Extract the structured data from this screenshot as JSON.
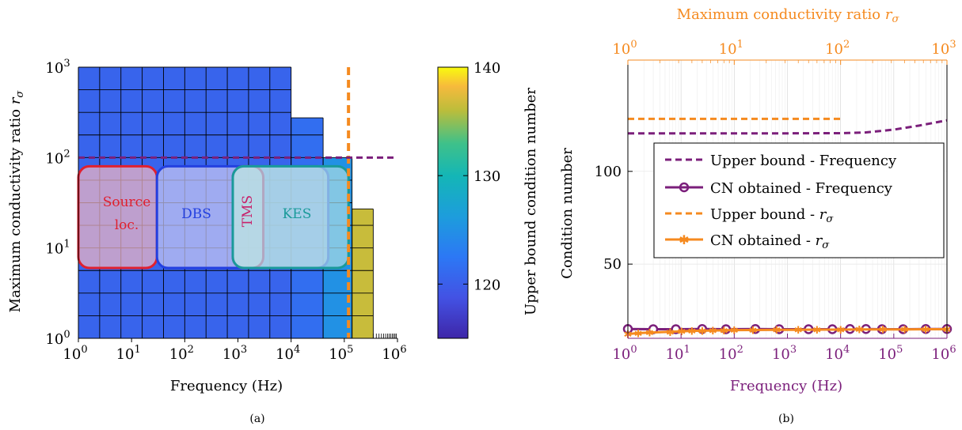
{
  "panel_a": {
    "caption": "(a)",
    "xlabel": "Frequency (Hz)",
    "ylabel": "Maximum conductivity ratio rσ",
    "colorbar_label": "Upper bound condition number",
    "colorbar_ticks": [
      "120",
      "130",
      "140"
    ],
    "x_tick_base": "10",
    "x_tick_exponents": [
      "0",
      "1",
      "2",
      "3",
      "4",
      "5",
      "6"
    ],
    "y_tick_exponents": [
      "0",
      "1",
      "2",
      "3"
    ],
    "regions": {
      "source": "Source loc.",
      "dbs": "DBS",
      "tms": "TMS",
      "kes": "KES"
    }
  },
  "panel_b": {
    "caption": "(b)",
    "xlabel": "Frequency (Hz)",
    "ylabel": "Condition number",
    "top_xlabel": "Maximum conductivity ratio rσ",
    "y_ticks": [
      "50",
      "100"
    ],
    "x_tick_exponents": [
      "0",
      "1",
      "2",
      "3",
      "4",
      "5",
      "6"
    ],
    "top_tick_exponents": [
      "0",
      "1",
      "2",
      "3"
    ],
    "legend": [
      "Upper bound - Frequency",
      "CN obtained - Frequency",
      "Upper bound - rσ",
      "CN obtained - rσ"
    ]
  },
  "chart_data": [
    {
      "type": "heatmap",
      "x_axis": {
        "label": "Frequency (Hz)",
        "scale": "log",
        "range": [
          1,
          1000000
        ]
      },
      "y_axis": {
        "label": "Maximum conductivity ratio rσ",
        "scale": "log",
        "range": [
          1,
          1000
        ]
      },
      "colorbar": {
        "label": "Upper bound condition number",
        "range": [
          115,
          140
        ],
        "ticks": [
          120,
          130,
          140
        ]
      },
      "columns": [
        {
          "f_from": 1,
          "f_to": 10000,
          "r_max": 1000,
          "value": 120.5
        },
        {
          "f_from": 10000,
          "f_to": 40000,
          "r_max": 275,
          "value": 121.5
        },
        {
          "f_from": 40000,
          "f_to": 140000,
          "r_max": 100,
          "value": 125
        },
        {
          "f_from": 140000,
          "f_to": 350000,
          "r_max": 27,
          "value": 136.5
        }
      ],
      "reference_lines": {
        "frequency_limit": 120000,
        "conductivity_limit": 100
      },
      "regions": [
        {
          "label": "Source loc.",
          "f_range": [
            1,
            30
          ],
          "r_range": [
            6,
            80
          ],
          "color": "#e0202f"
        },
        {
          "label": "DBS",
          "f_range": [
            30,
            50000
          ],
          "r_range": [
            6,
            80
          ],
          "color": "#2340e0"
        },
        {
          "label": "TMS",
          "f_range": [
            800,
            3000
          ],
          "r_range": [
            6,
            80
          ],
          "color": "#c8206a"
        },
        {
          "label": "KES",
          "f_range": [
            800,
            120000
          ],
          "r_range": [
            6,
            80
          ],
          "color": "#1a9a9a"
        }
      ]
    },
    {
      "type": "line",
      "xlabel": "Frequency (Hz)",
      "ylabel": "Condition number",
      "x_scale": "log",
      "xlim": [
        1,
        1000000
      ],
      "ylim": [
        10,
        160
      ],
      "top_axis": {
        "label": "Maximum conductivity ratio rσ",
        "scale": "log",
        "range": [
          1,
          1000
        ]
      },
      "series": [
        {
          "name": "Upper bound - Frequency",
          "axis": "bottom",
          "style": "dashed",
          "color": "#7b1f7b",
          "x": [
            1,
            10,
            100,
            1000,
            10000,
            30000,
            100000,
            300000,
            1000000
          ],
          "y": [
            120.5,
            120.5,
            120.5,
            120.5,
            120.6,
            121.0,
            122.5,
            124.7,
            127.5
          ]
        },
        {
          "name": "CN obtained - Frequency",
          "axis": "bottom",
          "style": "solid-circle",
          "color": "#7b1f7b",
          "x": [
            1,
            3,
            8,
            25,
            70,
            250,
            700,
            2500,
            7000,
            15000,
            30000,
            60000,
            150000,
            400000,
            1000000
          ],
          "y": [
            15,
            14.9,
            14.9,
            15,
            14.9,
            15,
            14.9,
            14.9,
            14.9,
            15,
            15,
            14.9,
            14.9,
            15,
            15
          ]
        },
        {
          "name": "Upper bound - rσ",
          "axis": "top",
          "style": "dashed",
          "color": "#f58a1f",
          "x": [
            1,
            10,
            100
          ],
          "y": [
            128.3,
            128.3,
            128.3
          ]
        },
        {
          "name": "CN obtained - rσ",
          "axis": "top",
          "style": "solid-star",
          "color": "#f58a1f",
          "x": [
            1,
            1.25,
            1.6,
            2.5,
            3.2,
            4,
            5,
            6.3,
            8,
            10,
            15,
            25,
            40,
            60,
            100,
            150,
            250,
            400,
            630,
            1000
          ],
          "y": [
            12.3,
            12.8,
            13.1,
            13.5,
            13.8,
            14.0,
            14.1,
            14.2,
            14.3,
            14.4,
            14.5,
            14.6,
            14.6,
            14.7,
            14.7,
            14.8,
            14.8,
            14.8,
            14.9,
            14.9
          ]
        }
      ]
    }
  ]
}
